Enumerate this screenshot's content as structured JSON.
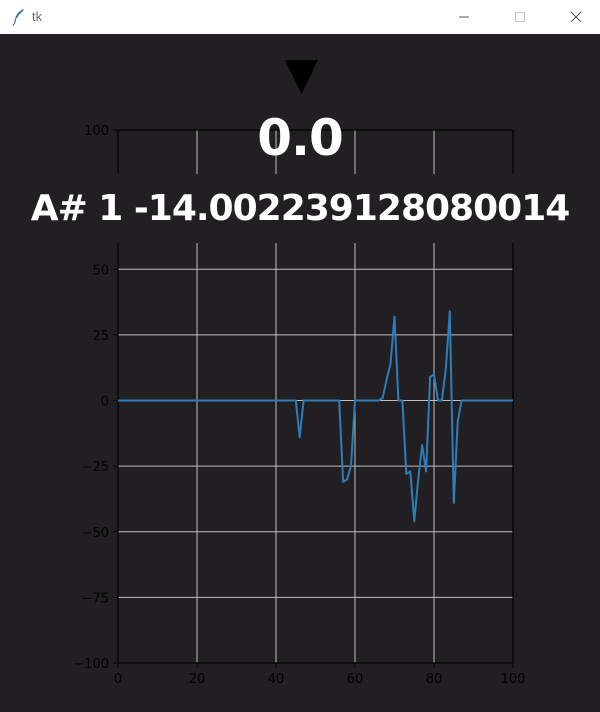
{
  "window": {
    "title": "tk",
    "icon": "feather-icon",
    "controls": [
      "minimize-icon",
      "maximize-icon",
      "close-icon"
    ]
  },
  "readout": {
    "value": "0.0",
    "note": "A# 1 -14.002239128080014",
    "indicator_icon": "triangle-down-icon"
  },
  "colors": {
    "background": "#221f22",
    "line": "#2e7cb8",
    "grid": "#bfbfbf",
    "axis": "#000000",
    "text": "#ffffff"
  },
  "chart_data": [
    {
      "type": "line",
      "title": "",
      "xlabel": "",
      "ylabel": "",
      "xlim": [
        0,
        100
      ],
      "ylim": [
        0,
        100
      ],
      "x_ticks": [
        "0",
        "20",
        "40",
        "60",
        "80",
        "100"
      ],
      "y_ticks": [
        "100"
      ],
      "grid": true,
      "series": []
    },
    {
      "type": "line",
      "title": "",
      "xlabel": "",
      "ylabel": "",
      "xlim": [
        0,
        100
      ],
      "ylim": [
        -100,
        60
      ],
      "grid": true,
      "x_ticks": [
        "0",
        "20",
        "40",
        "60",
        "80",
        "100"
      ],
      "y_ticks": [
        "50",
        "25",
        "0",
        "−25",
        "−50",
        "−75",
        "−100"
      ],
      "series": [
        {
          "x": [
            0,
            44,
            45,
            46,
            47,
            56,
            57,
            58,
            59,
            60,
            61,
            66,
            67,
            68,
            69,
            70,
            71,
            72,
            73,
            74,
            75,
            76,
            77,
            78,
            79,
            80,
            81,
            82,
            83,
            84,
            85,
            86,
            87,
            88,
            100
          ],
          "y": [
            0,
            0,
            0,
            -14,
            0,
            0,
            -31,
            -30,
            -25,
            0,
            0,
            0,
            1,
            8,
            14,
            32,
            0,
            0,
            -28,
            -27,
            -46,
            -30,
            -17,
            -27,
            9,
            10,
            0,
            0,
            12,
            34,
            -39,
            -8,
            0,
            0,
            0
          ]
        }
      ]
    }
  ]
}
